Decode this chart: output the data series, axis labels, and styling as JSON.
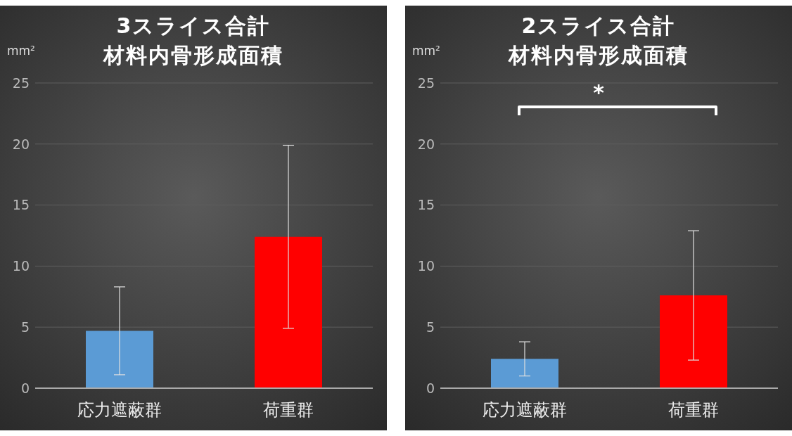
{
  "chart_data": [
    {
      "type": "bar",
      "title": "3スライス合計",
      "subtitle": "材料内骨形成面積",
      "ylabel": "mm²",
      "categories": [
        "応力遮蔽群",
        "荷重群"
      ],
      "values": [
        4.7,
        12.4
      ],
      "errors": [
        3.6,
        7.5
      ],
      "colors": [
        "#5b9bd5",
        "#ff0000"
      ],
      "ylim": [
        0,
        25
      ],
      "yticks": [
        0,
        5,
        10,
        15,
        20,
        25
      ],
      "grid": "y",
      "legend": false
    },
    {
      "type": "bar",
      "title": "2スライス合計",
      "subtitle": "材料内骨形成面積",
      "ylabel": "mm²",
      "categories": [
        "応力遮蔽群",
        "荷重群"
      ],
      "values": [
        2.4,
        7.6
      ],
      "errors": [
        1.4,
        5.3
      ],
      "colors": [
        "#5b9bd5",
        "#ff0000"
      ],
      "ylim": [
        0,
        25
      ],
      "yticks": [
        0,
        5,
        10,
        15,
        20,
        25
      ],
      "grid": "y",
      "legend": false,
      "annotations": [
        "*"
      ]
    }
  ]
}
